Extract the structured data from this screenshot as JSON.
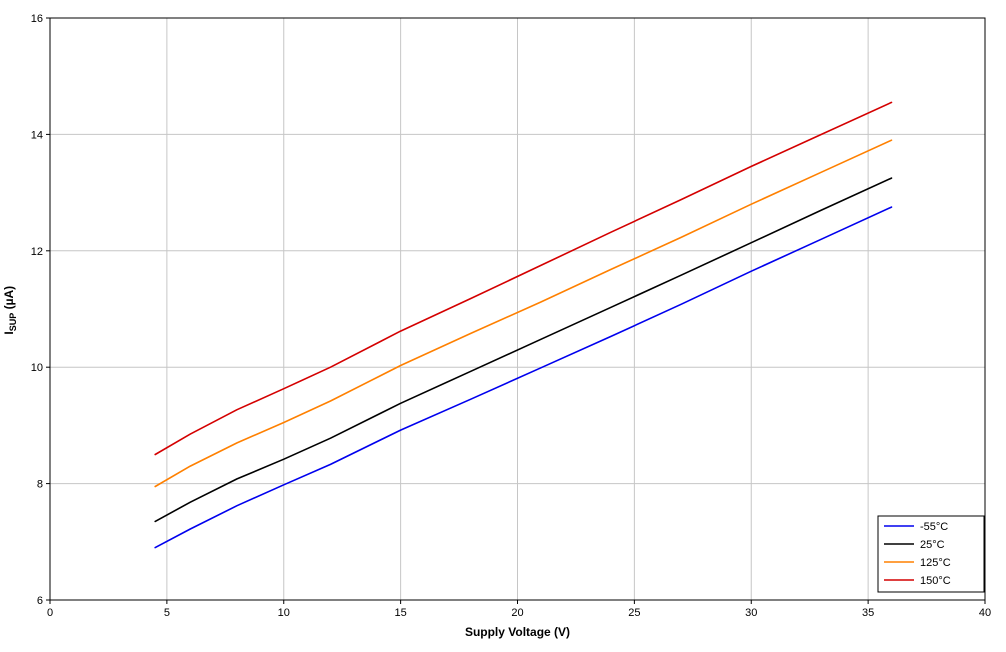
{
  "chart_data": {
    "type": "line",
    "title": "",
    "xlabel": "Supply Voltage (V)",
    "ylabel": {
      "main": "I",
      "sub": "SUP",
      "unit": " (µA)"
    },
    "xlim": [
      0,
      40
    ],
    "ylim": [
      6,
      16
    ],
    "x_ticks": [
      0,
      5,
      10,
      15,
      20,
      25,
      30,
      35,
      40
    ],
    "y_ticks": [
      6,
      8,
      10,
      12,
      14,
      16
    ],
    "grid": true,
    "legend_position": "lower right",
    "x": [
      4.5,
      6,
      8,
      10,
      12,
      15,
      18,
      21,
      24,
      27,
      30,
      33,
      36
    ],
    "series": [
      {
        "name": "-55°C",
        "color": "#0000ee",
        "values": [
          6.9,
          7.22,
          7.62,
          7.98,
          8.33,
          8.92,
          9.45,
          9.99,
          10.53,
          11.08,
          11.65,
          12.2,
          12.75
        ]
      },
      {
        "name": "25°C",
        "color": "#000000",
        "values": [
          7.35,
          7.68,
          8.08,
          8.42,
          8.78,
          9.38,
          9.93,
          10.48,
          11.03,
          11.58,
          12.14,
          12.7,
          13.25
        ]
      },
      {
        "name": "125°C",
        "color": "#ff8000",
        "values": [
          7.95,
          8.3,
          8.7,
          9.05,
          9.42,
          10.03,
          10.58,
          11.12,
          11.68,
          12.23,
          12.8,
          13.35,
          13.9
        ]
      },
      {
        "name": "150°C",
        "color": "#d40000",
        "values": [
          8.5,
          8.85,
          9.27,
          9.63,
          10.0,
          10.62,
          11.18,
          11.75,
          12.32,
          12.88,
          13.45,
          14.0,
          14.55
        ]
      }
    ]
  }
}
